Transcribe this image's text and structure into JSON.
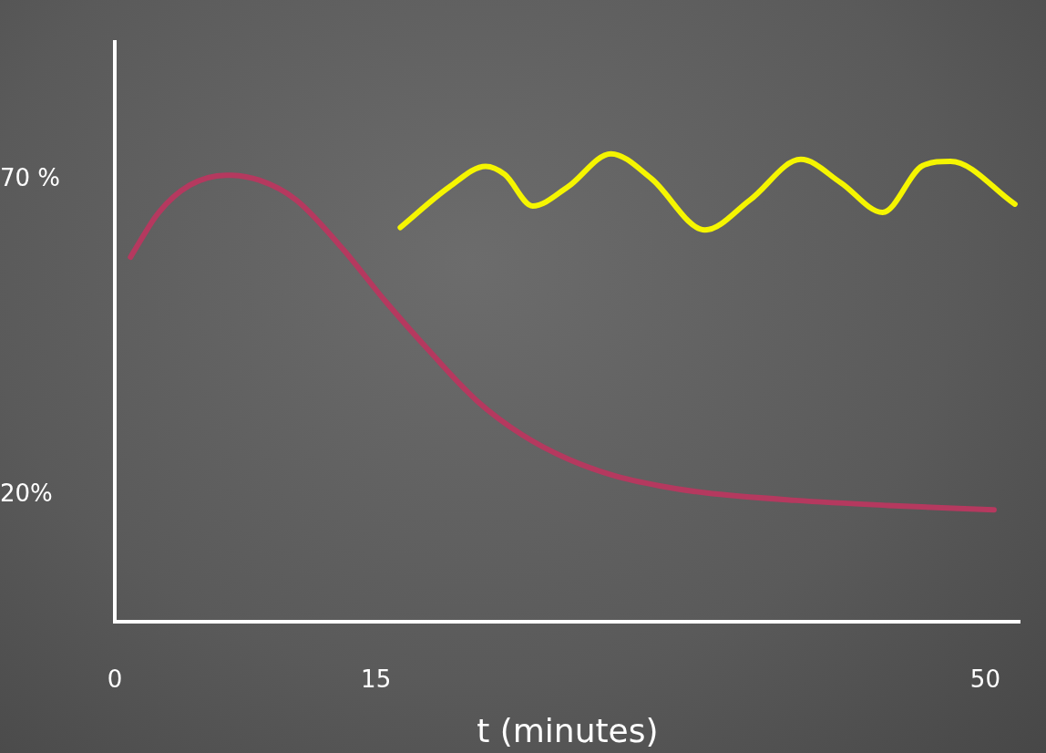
{
  "chart_data": {
    "type": "line",
    "xlabel": "t (minutes)",
    "xlim": [
      0,
      52
    ],
    "xticks": [
      0,
      15,
      50
    ],
    "ylim": [
      0,
      92
    ],
    "yticks": [
      {
        "value": 70,
        "label": "70 %"
      },
      {
        "value": 20,
        "label": "20%"
      }
    ],
    "grid": false,
    "legend": false,
    "marker": "none",
    "line_style": "solid",
    "series": [
      {
        "color": "#b5395f",
        "x": [
          0.9,
          2.5,
          4.3,
          6.4,
          8.3,
          10.4,
          13,
          15.6,
          18.2,
          20.8,
          23.4,
          26,
          28.7,
          31.3,
          33.9,
          39.1,
          44.4,
          50.5
        ],
        "values": [
          57.8,
          64.8,
          69.2,
          70.8,
          70,
          66.9,
          59.4,
          50.6,
          42.5,
          35,
          29.6,
          25.8,
          23.1,
          21.5,
          20.4,
          19.2,
          18.4,
          17.7
        ]
      },
      {
        "color": "#f5f500",
        "x": [
          16.4,
          19.2,
          21.3,
          22.4,
          24,
          26,
          28.5,
          30.8,
          33.9,
          36.5,
          39.4,
          41.7,
          44.1,
          46.4,
          48,
          51.7
        ],
        "values": [
          62.5,
          68.9,
          72.2,
          70.9,
          65.9,
          68.9,
          74.2,
          70.3,
          62.1,
          66.9,
          73.3,
          69.6,
          64.9,
          72.3,
          73,
          66.2
        ]
      }
    ]
  }
}
